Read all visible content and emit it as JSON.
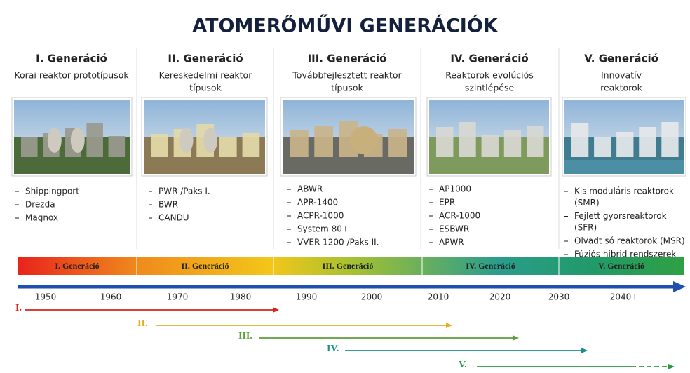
{
  "title": "ATOMERŐMŰVI GENERÁCIÓK",
  "columns": [
    {
      "heading": "I. Generáció",
      "subtitle": [
        "Korai reaktor prototípusok"
      ],
      "items": [
        [
          "Shippingport"
        ],
        [
          "Drezda"
        ],
        [
          "Magnox"
        ]
      ]
    },
    {
      "heading": "II. Generáció",
      "subtitle": [
        "Kereskedelmi reaktor",
        "típusok"
      ],
      "items": [
        [
          "PWR /Paks I."
        ],
        [
          "BWR"
        ],
        [
          "CANDU"
        ]
      ]
    },
    {
      "heading": "III. Generáció",
      "subtitle": [
        "Továbbfejlesztett reaktor",
        "típusok"
      ],
      "items": [
        [
          "ABWR"
        ],
        [
          "APR-1400"
        ],
        [
          "ACPR-1000"
        ],
        [
          "System 80+"
        ],
        [
          "VVER 1200 /Paks II."
        ]
      ]
    },
    {
      "heading": "IV. Generáció",
      "subtitle": [
        "Reaktorok evolúciós",
        "szintlépése"
      ],
      "items": [
        [
          "AP1000"
        ],
        [
          "EPR"
        ],
        [
          "ACR-1000"
        ],
        [
          "ESBWR"
        ],
        [
          "APWR"
        ]
      ]
    },
    {
      "heading": "V. Generáció",
      "subtitle": [
        "Innovatív",
        "reaktorok"
      ],
      "items": [
        [
          "Kis moduláris reaktorok",
          "(SMR)"
        ],
        [
          "Fejlett gyorsreaktorok",
          "(SFR)"
        ],
        [
          "Olvadt só reaktorok (MSR)"
        ],
        [
          "Fúziós hibrid rendszerek"
        ]
      ]
    }
  ],
  "timeline": {
    "segments": [
      "I. Generáció",
      "II. Generáció",
      "III. Generáció",
      "IV. Generáció",
      "V. Generáció"
    ],
    "years": [
      "1950",
      "1960",
      "1970",
      "1980",
      "1990",
      "2000",
      "2010",
      "2020",
      "2030",
      "2040+"
    ]
  },
  "arrows": [
    "I.",
    "II.",
    "III.",
    "IV.",
    "V."
  ]
}
